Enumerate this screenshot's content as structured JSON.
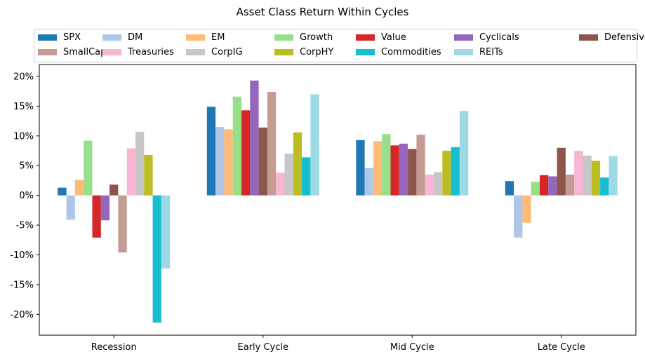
{
  "chart_data": {
    "type": "bar",
    "title": "Asset Class Return Within Cycles",
    "xlabel": "",
    "ylabel": "",
    "ylim": [
      -23.5,
      22
    ],
    "yticks": [
      -20,
      -15,
      -10,
      -5,
      0,
      5,
      10,
      15,
      20
    ],
    "ytick_labels": [
      "-20%",
      "-15%",
      "-10%",
      "-5%",
      "0%",
      "5%",
      "10%",
      "15%",
      "20%"
    ],
    "grid": false,
    "legend_position": "top",
    "categories": [
      "Recession",
      "Early Cycle",
      "Mid Cycle",
      "Late Cycle"
    ],
    "series": [
      {
        "name": "SPX",
        "color": "#1f77b4",
        "values": [
          1.3,
          14.9,
          9.3,
          2.4
        ]
      },
      {
        "name": "DM",
        "color": "#aec7e8",
        "values": [
          -4.1,
          11.5,
          4.6,
          -7.1
        ]
      },
      {
        "name": "EM",
        "color": "#ffbb78",
        "values": [
          2.6,
          11.1,
          9.1,
          -4.6
        ]
      },
      {
        "name": "Growth",
        "color": "#98df8a",
        "values": [
          9.2,
          16.6,
          10.3,
          2.3
        ]
      },
      {
        "name": "Value",
        "color": "#d62728",
        "values": [
          -7.1,
          14.3,
          8.4,
          3.4
        ]
      },
      {
        "name": "Cyclicals",
        "color": "#9467bd",
        "values": [
          -4.2,
          19.3,
          8.7,
          3.2
        ]
      },
      {
        "name": "Defensives",
        "color": "#8c564b",
        "values": [
          1.8,
          11.4,
          7.8,
          8.0
        ]
      },
      {
        "name": "SmallCap",
        "color": "#c49c94",
        "values": [
          -9.6,
          17.4,
          10.2,
          3.5
        ]
      },
      {
        "name": "Treasuries",
        "color": "#f7b6d2",
        "values": [
          7.9,
          3.8,
          3.5,
          7.5
        ]
      },
      {
        "name": "CorpIG",
        "color": "#c7c7c7",
        "values": [
          10.7,
          7.0,
          3.9,
          6.7
        ]
      },
      {
        "name": "CorpHY",
        "color": "#bcbd22",
        "values": [
          6.8,
          10.6,
          7.5,
          5.8
        ]
      },
      {
        "name": "Commodities",
        "color": "#17becf",
        "values": [
          -21.4,
          6.4,
          8.1,
          3.0
        ]
      },
      {
        "name": "REITs",
        "color": "#9edae5",
        "values": [
          -12.3,
          17.0,
          14.2,
          6.6
        ]
      }
    ]
  }
}
